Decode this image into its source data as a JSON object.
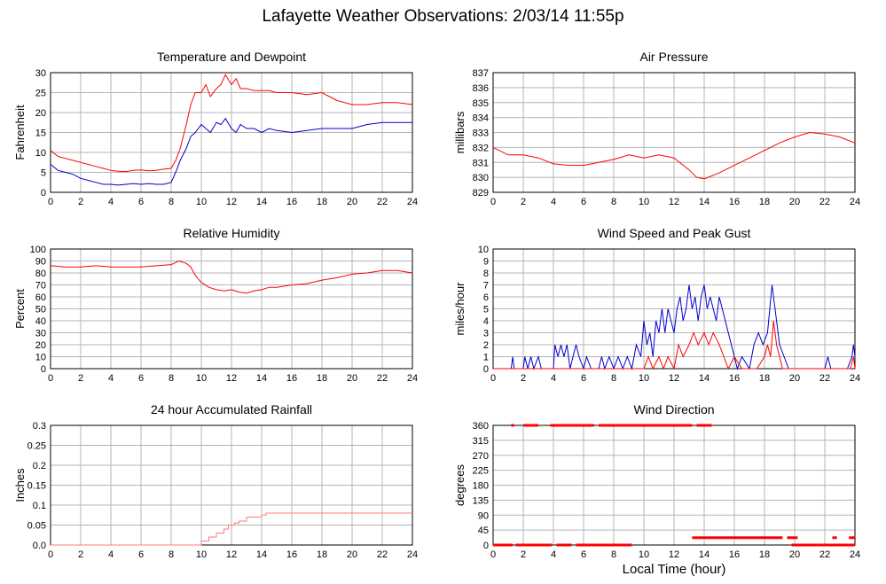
{
  "title": "Lafayette Weather Observations: 2/03/14 11:55p",
  "xlabel": "Local Time (hour)",
  "colors": {
    "red": "#ff0000",
    "blue": "#0000cc",
    "pink": "#ff7a7a",
    "grid": "#b4b4b4"
  },
  "chart_data": [
    {
      "id": "temp",
      "type": "line",
      "title": "Temperature and Dewpoint",
      "ylabel": "Fahrenheit",
      "xlim": [
        0,
        24
      ],
      "ylim": [
        0,
        30
      ],
      "xticks": [
        0,
        2,
        4,
        6,
        8,
        10,
        12,
        14,
        16,
        18,
        20,
        22,
        24
      ],
      "yticks": [
        0,
        5,
        10,
        15,
        20,
        25,
        30
      ],
      "grid": true,
      "series": [
        {
          "color": "red",
          "x": [
            0,
            0.5,
            1,
            1.5,
            2,
            2.5,
            3,
            3.5,
            4,
            4.5,
            5,
            5.5,
            6,
            6.5,
            7,
            7.5,
            8,
            8.3,
            8.6,
            9,
            9.3,
            9.6,
            10,
            10.3,
            10.6,
            11,
            11.3,
            11.6,
            12,
            12.3,
            12.6,
            13,
            13.5,
            14,
            14.5,
            15,
            16,
            17,
            18,
            18.5,
            19,
            20,
            21,
            22,
            23,
            24
          ],
          "y": [
            10.5,
            9,
            8.5,
            8,
            7.5,
            7,
            6.5,
            6,
            5.5,
            5.3,
            5.2,
            5.5,
            5.6,
            5.4,
            5.5,
            5.8,
            6,
            8,
            11,
            17,
            22,
            25,
            25,
            27,
            24,
            26,
            27,
            29.5,
            27,
            28.5,
            26,
            26,
            25.5,
            25.5,
            25.5,
            25,
            25,
            24.5,
            25,
            24,
            23,
            22,
            22,
            22.5,
            22.5,
            22
          ]
        },
        {
          "color": "blue",
          "x": [
            0,
            0.5,
            1,
            1.5,
            2,
            2.5,
            3,
            3.5,
            4,
            4.5,
            5,
            5.5,
            6,
            6.5,
            7,
            7.5,
            8,
            8.3,
            8.6,
            9,
            9.3,
            9.6,
            10,
            10.3,
            10.6,
            11,
            11.3,
            11.6,
            12,
            12.3,
            12.6,
            13,
            13.5,
            14,
            14.5,
            15,
            16,
            17,
            18,
            19,
            20,
            21,
            22,
            23,
            24
          ],
          "y": [
            7,
            5.5,
            5,
            4.5,
            3.5,
            3,
            2.5,
            2,
            2,
            1.8,
            2,
            2.2,
            2,
            2.2,
            2,
            2,
            2.5,
            5,
            8,
            11,
            14,
            15,
            17,
            16,
            15,
            17.5,
            17,
            18.5,
            16,
            15,
            17,
            16,
            16,
            15,
            16,
            15.5,
            15,
            15.5,
            16,
            16,
            16,
            17,
            17.5,
            17.5,
            17.5
          ]
        }
      ]
    },
    {
      "id": "pressure",
      "type": "line",
      "title": "Air Pressure",
      "ylabel": "millibars",
      "xlim": [
        0,
        24
      ],
      "ylim": [
        829,
        837
      ],
      "xticks": [
        0,
        2,
        4,
        6,
        8,
        10,
        12,
        14,
        16,
        18,
        20,
        22,
        24
      ],
      "yticks": [
        829,
        830,
        831,
        832,
        833,
        834,
        835,
        836,
        837
      ],
      "grid": true,
      "series": [
        {
          "color": "red",
          "x": [
            0,
            1,
            2,
            3,
            4,
            5,
            6,
            7,
            8,
            9,
            10,
            11,
            12,
            13,
            13.5,
            14,
            15,
            16,
            17,
            18,
            19,
            20,
            21,
            22,
            23,
            24
          ],
          "y": [
            832,
            831.5,
            831.5,
            831.3,
            830.9,
            830.8,
            830.8,
            831,
            831.2,
            831.5,
            831.3,
            831.5,
            831.3,
            830.5,
            830,
            829.9,
            830.3,
            830.8,
            831.3,
            831.8,
            832.3,
            832.7,
            833,
            832.9,
            832.7,
            832.3
          ]
        }
      ]
    },
    {
      "id": "humidity",
      "type": "line",
      "title": "Relative Humidity",
      "ylabel": "Percent",
      "xlim": [
        0,
        24
      ],
      "ylim": [
        0,
        100
      ],
      "xticks": [
        0,
        2,
        4,
        6,
        8,
        10,
        12,
        14,
        16,
        18,
        20,
        22,
        24
      ],
      "yticks": [
        0,
        10,
        20,
        30,
        40,
        50,
        60,
        70,
        80,
        90,
        100
      ],
      "grid": true,
      "series": [
        {
          "color": "red",
          "x": [
            0,
            1,
            2,
            3,
            4,
            5,
            6,
            7,
            8,
            8.5,
            9,
            9.3,
            9.6,
            10,
            10.5,
            11,
            11.5,
            12,
            12.5,
            13,
            13.5,
            14,
            14.5,
            15,
            16,
            17,
            18,
            19,
            20,
            21,
            22,
            23,
            24
          ],
          "y": [
            86,
            85,
            85,
            86,
            85,
            85,
            85,
            86,
            87,
            90,
            88,
            85,
            78,
            72,
            68,
            66,
            65,
            66,
            64,
            63,
            65,
            66,
            68,
            68,
            70,
            71,
            74,
            76,
            79,
            80,
            82,
            82,
            80
          ]
        }
      ]
    },
    {
      "id": "wind",
      "type": "line",
      "title": "Wind Speed and Peak Gust",
      "ylabel": "miles/hour",
      "xlim": [
        0,
        24
      ],
      "ylim": [
        0,
        10
      ],
      "xticks": [
        0,
        2,
        4,
        6,
        8,
        10,
        12,
        14,
        16,
        18,
        20,
        22,
        24
      ],
      "yticks": [
        0,
        1,
        2,
        3,
        4,
        5,
        6,
        7,
        8,
        9,
        10
      ],
      "grid": true,
      "series": [
        {
          "color": "blue",
          "x": [
            0,
            1.2,
            1.3,
            1.4,
            1.6,
            2,
            2.1,
            2.3,
            2.5,
            2.7,
            3,
            3.2,
            4,
            4.1,
            4.3,
            4.5,
            4.7,
            4.9,
            5.1,
            5.3,
            5.5,
            5.7,
            6,
            6.2,
            6.5,
            7,
            7.2,
            7.4,
            7.7,
            8,
            8.3,
            8.6,
            8.9,
            9.2,
            9.5,
            9.8,
            10,
            10.2,
            10.4,
            10.6,
            10.8,
            11,
            11.2,
            11.4,
            11.6,
            11.8,
            12,
            12.2,
            12.4,
            12.6,
            12.8,
            13,
            13.2,
            13.4,
            13.6,
            13.8,
            14,
            14.2,
            14.4,
            14.6,
            14.8,
            15,
            15.2,
            15.4,
            15.6,
            15.8,
            16,
            16.2,
            16.5,
            17,
            17.3,
            17.6,
            17.9,
            18.2,
            18.5,
            18.7,
            19,
            19.3,
            19.6,
            20,
            21,
            22,
            22.2,
            22.4,
            23,
            23.5,
            23.8,
            23.9,
            24
          ],
          "y": [
            0,
            0,
            1,
            0,
            0,
            0,
            1,
            0,
            1,
            0,
            1,
            0,
            0,
            2,
            1,
            2,
            1,
            2,
            0,
            1,
            2,
            1,
            0,
            1,
            0,
            0,
            1,
            0,
            1,
            0,
            1,
            0,
            1,
            0,
            2,
            1,
            4,
            2,
            3,
            1,
            4,
            3,
            5,
            3,
            5,
            4,
            3,
            5,
            6,
            4,
            5,
            7,
            5,
            6,
            4,
            6,
            7,
            5,
            6,
            5,
            4,
            6,
            5,
            4,
            3,
            2,
            1,
            0,
            1,
            0,
            2,
            3,
            2,
            3,
            7,
            5,
            2,
            1,
            0,
            0,
            0,
            0,
            1,
            0,
            0,
            0,
            1,
            2,
            1
          ]
        },
        {
          "color": "red",
          "x": [
            0,
            10,
            10.3,
            10.6,
            11,
            11.3,
            11.6,
            12,
            12.3,
            12.6,
            13,
            13.3,
            13.6,
            14,
            14.3,
            14.6,
            15,
            15.3,
            15.6,
            16,
            16.5,
            17,
            17.5,
            18,
            18.2,
            18.4,
            18.6,
            18.8,
            19,
            19.2,
            20,
            23.7,
            23.9,
            24
          ],
          "y": [
            0,
            0,
            1,
            0,
            1,
            0,
            1,
            0,
            2,
            1,
            2,
            3,
            2,
            3,
            2,
            3,
            2,
            1,
            0,
            1,
            0,
            0,
            0,
            1,
            2,
            1,
            4,
            2,
            1,
            0,
            0,
            0,
            1,
            0
          ]
        }
      ]
    },
    {
      "id": "rain",
      "type": "line",
      "title": "24 hour Accumulated Rainfall",
      "ylabel": "Inches",
      "xlim": [
        0,
        24
      ],
      "ylim": [
        0,
        0.3
      ],
      "xticks": [
        0,
        2,
        4,
        6,
        8,
        10,
        12,
        14,
        16,
        18,
        20,
        22,
        24
      ],
      "yticks": [
        0.0,
        0.05,
        0.1,
        0.15,
        0.2,
        0.25,
        0.3
      ],
      "ytick_labels": [
        "0.0",
        "0.05",
        "0.1",
        "0.15",
        "0.2",
        "0.25",
        "0.3"
      ],
      "grid": true,
      "series": [
        {
          "color": "pink",
          "step": true,
          "x": [
            0,
            10.0,
            10.5,
            11.0,
            11.5,
            11.8,
            12.2,
            12.5,
            13.0,
            14.0,
            14.3,
            24
          ],
          "y": [
            0,
            0.01,
            0.02,
            0.03,
            0.04,
            0.05,
            0.055,
            0.06,
            0.07,
            0.075,
            0.08,
            0.08
          ]
        }
      ]
    },
    {
      "id": "direction",
      "type": "scatter",
      "title": "Wind Direction",
      "ylabel": "degrees",
      "xlim": [
        0,
        24
      ],
      "ylim": [
        0,
        360
      ],
      "xticks": [
        0,
        2,
        4,
        6,
        8,
        10,
        12,
        14,
        16,
        18,
        20,
        22,
        24
      ],
      "yticks": [
        0,
        45,
        90,
        135,
        180,
        225,
        270,
        315,
        360
      ],
      "grid": true,
      "segments": [
        {
          "color": "red",
          "y": 360,
          "x": [
            1.2,
            1.4
          ]
        },
        {
          "color": "red",
          "y": 360,
          "x": [
            2.0,
            3.0
          ]
        },
        {
          "color": "red",
          "y": 360,
          "x": [
            3.8,
            6.7
          ]
        },
        {
          "color": "red",
          "y": 360,
          "x": [
            7.0,
            13.2
          ]
        },
        {
          "color": "red",
          "y": 360,
          "x": [
            13.5,
            14.5
          ]
        },
        {
          "color": "red",
          "y": 0,
          "x": [
            0.0,
            1.3
          ]
        },
        {
          "color": "red",
          "y": 0,
          "x": [
            1.5,
            3.9
          ]
        },
        {
          "color": "red",
          "y": 0,
          "x": [
            4.2,
            5.2
          ]
        },
        {
          "color": "red",
          "y": 0,
          "x": [
            5.5,
            9.2
          ]
        },
        {
          "color": "red",
          "y": 0,
          "x": [
            19.8,
            24.0
          ]
        },
        {
          "color": "red",
          "y": 22,
          "x": [
            13.2,
            19.2
          ]
        },
        {
          "color": "red",
          "y": 22,
          "x": [
            19.5,
            20.2
          ]
        },
        {
          "color": "red",
          "y": 22,
          "x": [
            22.5,
            22.8
          ]
        },
        {
          "color": "red",
          "y": 22,
          "x": [
            23.6,
            24.0
          ]
        }
      ]
    }
  ]
}
